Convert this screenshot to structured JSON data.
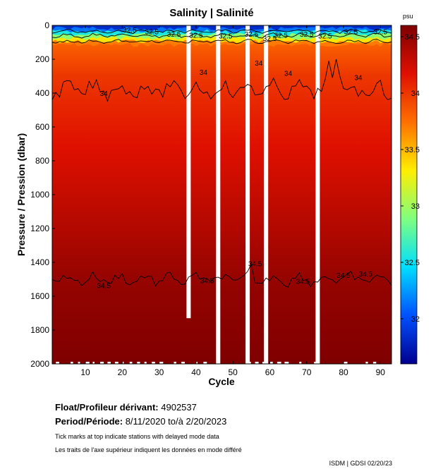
{
  "chart_data": {
    "type": "heatmap",
    "title": "Salinity | Salinité",
    "xlabel": "Cycle",
    "ylabel": "Pressure / Pression (dbar)",
    "xlim": [
      1,
      93
    ],
    "ylim": [
      2000,
      0
    ],
    "x_ticks": [
      "10",
      "20",
      "30",
      "40",
      "50",
      "60",
      "70",
      "80",
      "90"
    ],
    "y_ticks": [
      "0",
      "200",
      "400",
      "600",
      "800",
      "1000",
      "1200",
      "1400",
      "1600",
      "1800",
      "2000"
    ],
    "colorbar": {
      "unit": "psu",
      "range": [
        31.6,
        34.6
      ],
      "ticks": [
        "32",
        "32.5",
        "33",
        "33.5",
        "34",
        "34.5"
      ]
    },
    "color_scale": [
      "#00008f",
      "#0050ff",
      "#00dfff",
      "#7fff7f",
      "#ffee00",
      "#ff7000",
      "#e01000",
      "#7f0000"
    ],
    "missing_cycles": [
      38,
      46,
      54,
      59,
      73
    ],
    "contours": [
      {
        "level": "32.5",
        "labels": [
          "32.5",
          "32.5",
          "32.5",
          "32.5",
          "32.5",
          "32.5",
          "32.5",
          "32.5",
          "32.5",
          "32.5",
          "32.5",
          "32.5"
        ]
      },
      {
        "level": "34",
        "labels": [
          "34",
          "34",
          "34",
          "34",
          "34"
        ]
      },
      {
        "level": "34.5",
        "labels": [
          "34.5",
          "34.5",
          "34.5",
          "34.5",
          "34.5",
          "34.5"
        ]
      }
    ],
    "profiles": [
      {
        "depth": 0,
        "value": 31.7
      },
      {
        "depth": 30,
        "value": 32.3
      },
      {
        "depth": 60,
        "value": 33.2
      },
      {
        "depth": 100,
        "value": 33.8
      },
      {
        "depth": 300,
        "value": 34.0
      },
      {
        "depth": 1500,
        "value": 34.5
      },
      {
        "depth": 2000,
        "value": 34.6
      }
    ]
  },
  "info": {
    "float_label": "Float/Profileur dérivant:",
    "float_value": "4902537",
    "period_label": "Period/Période:",
    "period_value": "8/11/2020  to/à  2/20/2023",
    "note_en": "Tick marks at top indicate stations with delayed mode data",
    "note_fr": "Les traits de l'axe supérieur indiquent les données en mode différé",
    "credit": "ISDM | GDSI  02/20/23"
  }
}
